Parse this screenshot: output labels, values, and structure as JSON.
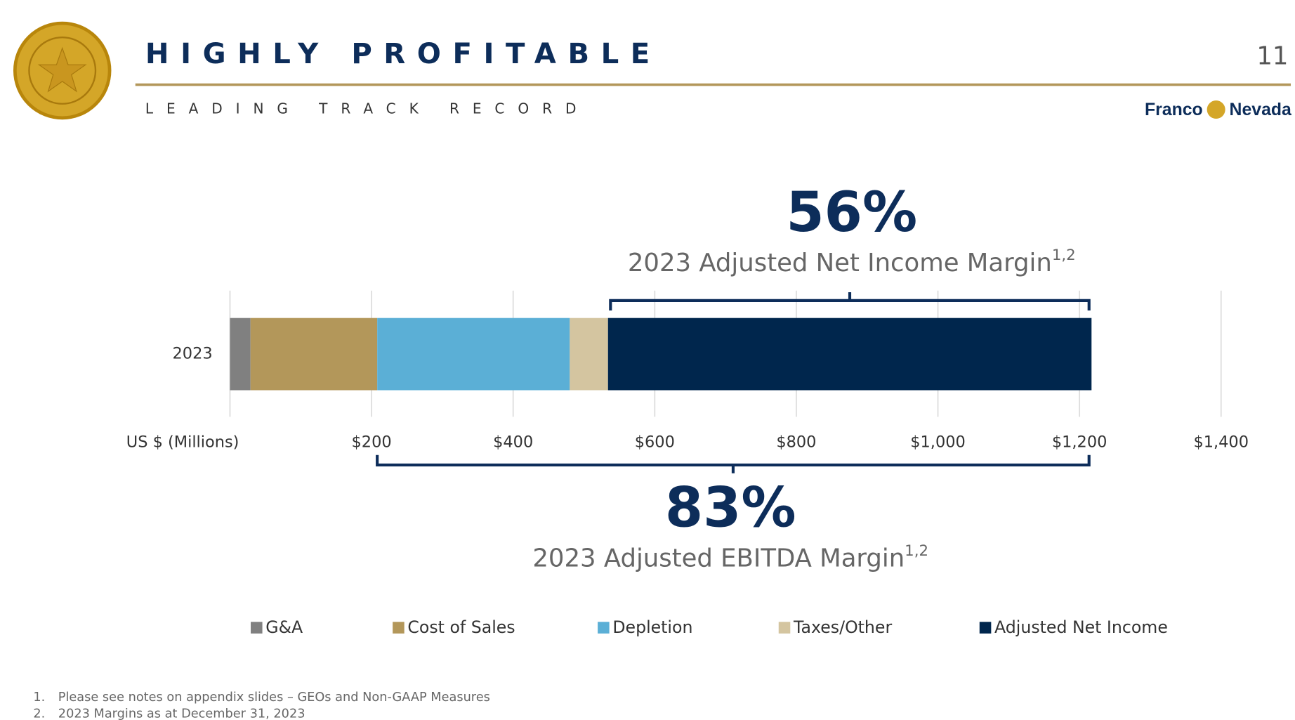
{
  "header": {
    "title": "HIGHLY PROFITABLE",
    "subtitle": "LEADING TRACK RECORD",
    "page_number": "11",
    "logo": [
      "Franco",
      "Nevada"
    ]
  },
  "chart_data": {
    "type": "stacked-bar-horizontal",
    "categories": [
      "2023"
    ],
    "x_axis_label": "US $ (Millions)",
    "xlim": [
      0,
      1400
    ],
    "xticks": [
      {
        "value": 200,
        "label": "$200"
      },
      {
        "value": 400,
        "label": "$400"
      },
      {
        "value": 600,
        "label": "$600"
      },
      {
        "value": 800,
        "label": "$800"
      },
      {
        "value": 1000,
        "label": "$1,000"
      },
      {
        "value": 1200,
        "label": "$1,200"
      },
      {
        "value": 1400,
        "label": "$1,400"
      }
    ],
    "grid": true,
    "series": [
      {
        "name": "G&A",
        "color": "#808080",
        "values": [
          29
        ]
      },
      {
        "name": "Cost of Sales",
        "color": "#b3975a",
        "values": [
          179
        ]
      },
      {
        "name": "Depletion",
        "color": "#5bafd6",
        "values": [
          272
        ]
      },
      {
        "name": "Taxes/Other",
        "color": "#d4c5a0",
        "values": [
          54
        ]
      },
      {
        "name": "Adjusted Net Income",
        "color": "#00264d",
        "values": [
          683
        ]
      }
    ],
    "annotations": [
      {
        "text": "56%",
        "label": "2023 Adjusted Net Income Margin",
        "superscript": "1,2"
      },
      {
        "text": "83%",
        "label": "2023 Adjusted EBITDA Margin",
        "superscript": "1,2"
      }
    ]
  },
  "footnotes": [
    {
      "number": "1.",
      "text": "Please see notes on appendix slides – GEOs and Non-GAAP Measures"
    },
    {
      "number": "2.",
      "text": "2023 Margins as at December 31, 2023"
    }
  ]
}
